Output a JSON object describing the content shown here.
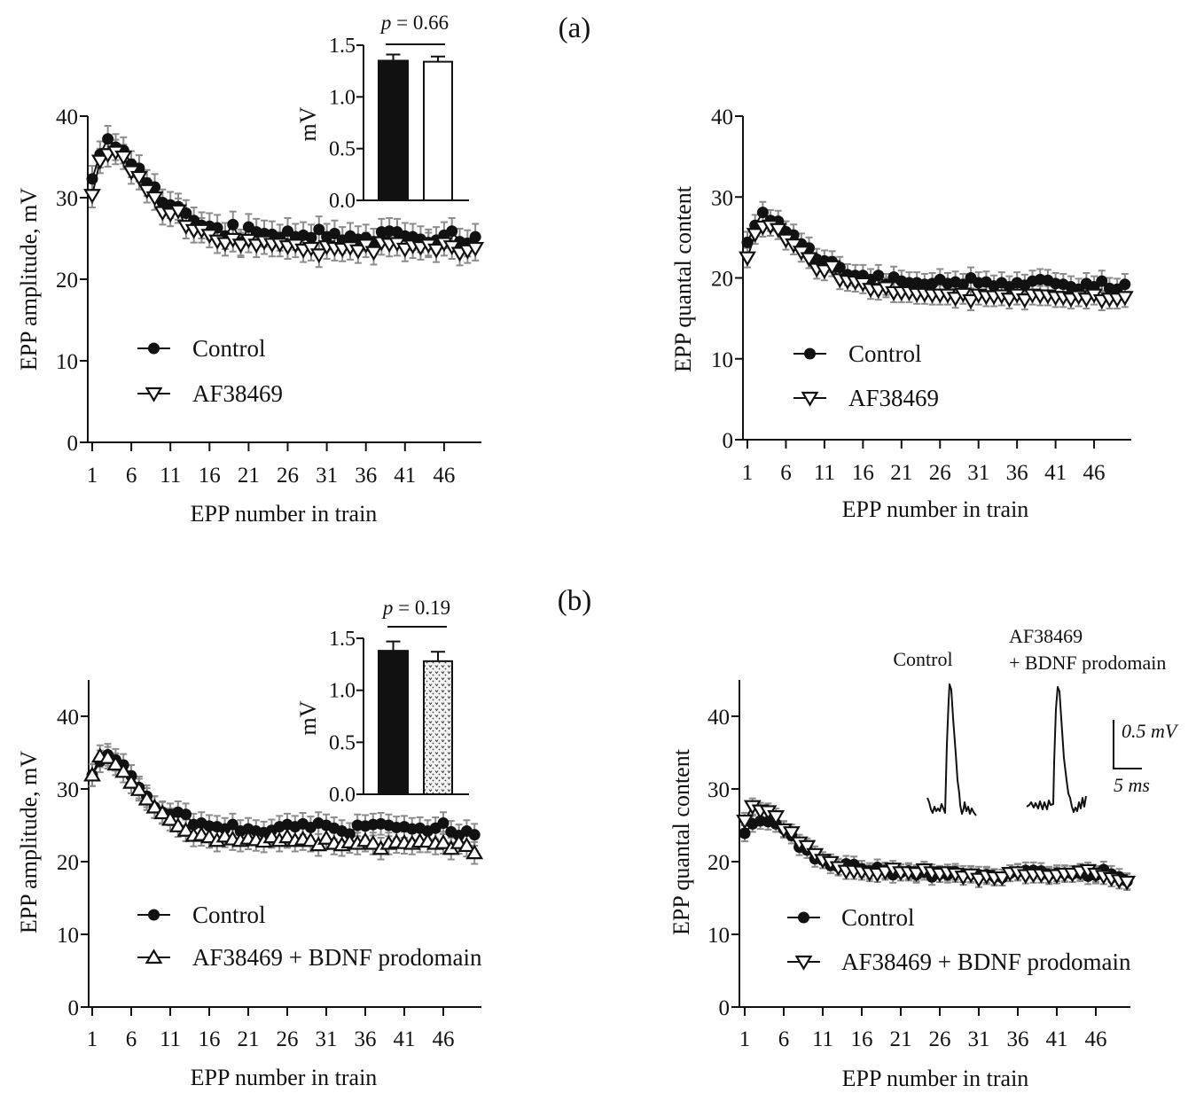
{
  "figure": {
    "panel_labels": {
      "a": "(a)",
      "b": "(b)"
    },
    "error_color": "#8c8c8c",
    "marker_color": "#111111"
  },
  "chart_data": [
    {
      "id": "a-amplitude",
      "panel": "(a)",
      "type": "line",
      "title": "",
      "xlabel": "EPP number in train",
      "ylabel": "EPP amplitude, mV",
      "xlim": [
        1,
        50
      ],
      "ylim": [
        0,
        40
      ],
      "xticks": [
        1,
        6,
        11,
        16,
        21,
        26,
        31,
        36,
        41,
        46
      ],
      "xtick_labels": [
        "1",
        "6",
        "11",
        "16",
        "21",
        "26",
        "31",
        "36",
        "41",
        "46"
      ],
      "yticks": [
        0,
        10,
        20,
        30,
        40
      ],
      "ytick_labels": [
        "0",
        "10",
        "20",
        "30",
        "40"
      ],
      "grid": false,
      "legend_position": "lower-left",
      "x": [
        1,
        2,
        3,
        4,
        5,
        6,
        7,
        8,
        9,
        10,
        11,
        12,
        13,
        14,
        15,
        16,
        17,
        18,
        19,
        20,
        21,
        22,
        23,
        24,
        25,
        26,
        27,
        28,
        29,
        30,
        31,
        32,
        33,
        34,
        35,
        36,
        37,
        38,
        39,
        40,
        41,
        42,
        43,
        44,
        45,
        46,
        47,
        48,
        49,
        50
      ],
      "series": [
        {
          "name": "Control",
          "marker": "filled-circle",
          "sem": 1.6,
          "values": [
            32.3,
            35.3,
            37.2,
            36.2,
            35.8,
            34.1,
            33.6,
            31.8,
            31.3,
            29.4,
            29.1,
            28.9,
            28.1,
            27.2,
            26.6,
            26.5,
            26.3,
            25.3,
            26.7,
            24.5,
            26.4,
            25.8,
            25.6,
            25.5,
            25.1,
            25.9,
            25.2,
            25.4,
            25.1,
            26.1,
            25.2,
            25.6,
            24.8,
            25.3,
            24.9,
            25.1,
            24.6,
            25.8,
            25.9,
            25.8,
            25.3,
            25.2,
            24.9,
            24.5,
            24.8,
            25.4,
            25.9,
            24.6,
            24.4,
            25.2
          ]
        },
        {
          "name": "AF38469",
          "marker": "open-triangle-down",
          "sem": 1.5,
          "values": [
            30.3,
            34.5,
            35.3,
            35.6,
            35.0,
            33.2,
            32.5,
            30.9,
            30.0,
            28.2,
            28.0,
            28.4,
            26.5,
            26.0,
            26.0,
            25.4,
            24.7,
            24.4,
            24.9,
            24.2,
            24.8,
            24.2,
            24.6,
            24.3,
            24.3,
            24.0,
            24.2,
            23.6,
            23.8,
            23.0,
            24.0,
            23.8,
            23.7,
            23.9,
            23.5,
            24.2,
            23.3,
            24.5,
            24.3,
            24.4,
            23.7,
            24.1,
            23.9,
            24.2,
            23.6,
            24.4,
            24.0,
            23.2,
            23.5,
            23.8
          ]
        }
      ]
    },
    {
      "id": "a-amplitude-inset",
      "panel": "(a)",
      "type": "bar",
      "categories": [
        "Control",
        "AF38469"
      ],
      "values": [
        1.35,
        1.34
      ],
      "errors": [
        0.06,
        0.05
      ],
      "fills": [
        "solid-black",
        "white"
      ],
      "ylabel": "mV",
      "ylim": [
        0,
        1.5
      ],
      "yticks": [
        0,
        0.5,
        1.0,
        1.5
      ],
      "ytick_labels": [
        "0.0",
        "0.5",
        "1.0",
        "1.5"
      ],
      "annotation": {
        "symbol": "p",
        "text": " = 0.66"
      }
    },
    {
      "id": "a-quantal",
      "panel": "(a)",
      "type": "line",
      "title": "",
      "xlabel": "EPP number in train",
      "ylabel": "EPP quantal content",
      "xlim": [
        1,
        50
      ],
      "ylim": [
        0,
        40
      ],
      "xticks": [
        1,
        6,
        11,
        16,
        21,
        26,
        31,
        36,
        41,
        46
      ],
      "xtick_labels": [
        "1",
        "6",
        "11",
        "16",
        "21",
        "26",
        "31",
        "36",
        "41",
        "46"
      ],
      "yticks": [
        0,
        10,
        20,
        30,
        40
      ],
      "ytick_labels": [
        "0",
        "10",
        "20",
        "30",
        "40"
      ],
      "grid": false,
      "legend_position": "lower-left",
      "x": [
        1,
        2,
        3,
        4,
        5,
        6,
        7,
        8,
        9,
        10,
        11,
        12,
        13,
        14,
        15,
        16,
        17,
        18,
        19,
        20,
        21,
        22,
        23,
        24,
        25,
        26,
        27,
        28,
        29,
        30,
        31,
        32,
        33,
        34,
        35,
        36,
        37,
        38,
        39,
        40,
        41,
        42,
        43,
        44,
        45,
        46,
        47,
        48,
        49,
        50
      ],
      "series": [
        {
          "name": "Control",
          "marker": "filled-circle",
          "sem": 1.3,
          "values": [
            24.4,
            26.5,
            28.1,
            27.1,
            27.0,
            25.7,
            25.3,
            24.2,
            23.7,
            22.3,
            22.1,
            22.0,
            21.3,
            20.4,
            20.3,
            20.3,
            19.8,
            20.3,
            19.2,
            20.1,
            19.6,
            19.4,
            19.4,
            19.2,
            19.3,
            19.8,
            19.3,
            19.5,
            19.2,
            20.0,
            19.4,
            19.5,
            19.0,
            19.4,
            18.9,
            19.4,
            19.1,
            19.6,
            19.8,
            19.7,
            19.3,
            19.2,
            18.9,
            18.6,
            19.3,
            18.9,
            19.6,
            18.7,
            18.6,
            19.2
          ]
        },
        {
          "name": "AF38469",
          "marker": "open-triangle-down",
          "sem": 1.2,
          "values": [
            22.5,
            25.4,
            26.3,
            26.4,
            26.0,
            24.7,
            24.1,
            23.2,
            22.4,
            21.1,
            20.9,
            21.4,
            19.8,
            19.6,
            19.5,
            19.3,
            18.6,
            18.5,
            18.8,
            18.2,
            18.2,
            18.2,
            18.0,
            18.0,
            17.9,
            17.9,
            17.9,
            17.5,
            18.0,
            17.2,
            17.9,
            17.7,
            17.7,
            17.8,
            17.4,
            17.9,
            17.3,
            17.9,
            17.8,
            17.8,
            17.6,
            17.6,
            17.4,
            17.7,
            17.4,
            17.9,
            17.2,
            17.4,
            17.4,
            17.6
          ]
        }
      ]
    },
    {
      "id": "b-amplitude",
      "panel": "(b)",
      "type": "line",
      "title": "",
      "xlabel": "EPP number in train",
      "ylabel": "EPP amplitude, mV",
      "xlim": [
        1,
        50
      ],
      "ylim": [
        0,
        45
      ],
      "xticks": [
        1,
        6,
        11,
        16,
        21,
        26,
        31,
        36,
        41,
        46
      ],
      "xtick_labels": [
        "1",
        "6",
        "11",
        "16",
        "21",
        "26",
        "31",
        "36",
        "41",
        "46"
      ],
      "yticks": [
        0,
        10,
        20,
        30,
        40
      ],
      "ytick_labels": [
        "0",
        "10",
        "20",
        "30",
        "40"
      ],
      "grid": false,
      "legend_position": "lower-left",
      "x": [
        1,
        2,
        3,
        4,
        5,
        6,
        7,
        8,
        9,
        10,
        11,
        12,
        13,
        14,
        15,
        16,
        17,
        18,
        19,
        20,
        21,
        22,
        23,
        24,
        25,
        26,
        27,
        28,
        29,
        30,
        31,
        32,
        33,
        34,
        35,
        36,
        37,
        38,
        39,
        40,
        41,
        42,
        43,
        44,
        45,
        46,
        47,
        48,
        49,
        50
      ],
      "series": [
        {
          "name": "Control",
          "marker": "filled-circle",
          "sem": 1.5,
          "values": [
            31.9,
            33.8,
            34.7,
            34.0,
            33.3,
            31.8,
            30.2,
            29.0,
            27.5,
            26.8,
            26.5,
            26.8,
            26.5,
            25.1,
            25.3,
            24.9,
            24.8,
            24.5,
            25.1,
            24.2,
            24.5,
            24.2,
            24.0,
            24.3,
            24.8,
            25.1,
            24.8,
            25.2,
            24.7,
            25.3,
            25.0,
            24.6,
            24.2,
            23.8,
            25.0,
            24.9,
            25.1,
            25.2,
            25.0,
            24.7,
            24.8,
            24.5,
            24.6,
            24.2,
            24.6,
            25.3,
            24.1,
            23.6,
            24.2,
            23.7
          ]
        },
        {
          "name": "AF38469 + BDNF prodomain",
          "marker": "open-triangle-up",
          "sem": 1.5,
          "values": [
            31.9,
            34.5,
            34.3,
            33.4,
            32.4,
            30.9,
            29.9,
            28.6,
            27.5,
            26.7,
            25.8,
            24.9,
            24.3,
            23.6,
            23.7,
            23.4,
            22.9,
            23.5,
            23.1,
            22.9,
            23.2,
            23.0,
            22.8,
            23.4,
            22.9,
            23.4,
            22.9,
            23.1,
            22.9,
            22.3,
            23.2,
            22.5,
            22.3,
            22.7,
            22.5,
            22.9,
            22.5,
            21.8,
            22.5,
            22.7,
            22.6,
            22.5,
            22.8,
            22.8,
            22.5,
            22.6,
            21.8,
            22.6,
            22.2,
            21.2
          ]
        }
      ]
    },
    {
      "id": "b-amplitude-inset",
      "panel": "(b)",
      "type": "bar",
      "categories": [
        "Control",
        "AF38469 + BDNF prodomain"
      ],
      "values": [
        1.38,
        1.28
      ],
      "errors": [
        0.09,
        0.09
      ],
      "fills": [
        "solid-black",
        "dotted-pattern"
      ],
      "ylabel": "mV",
      "ylim": [
        0,
        1.5
      ],
      "yticks": [
        0,
        0.5,
        1.0,
        1.5
      ],
      "ytick_labels": [
        "0.0",
        "0.5",
        "1.0",
        "1.5"
      ],
      "annotation": {
        "symbol": "p",
        "text": " = 0.19"
      }
    },
    {
      "id": "b-quantal",
      "panel": "(b)",
      "type": "line",
      "title": "",
      "xlabel": "EPP number in train",
      "ylabel": "EPP quantal content",
      "xlim": [
        1,
        50
      ],
      "ylim": [
        0,
        45
      ],
      "xticks": [
        1,
        6,
        11,
        16,
        21,
        26,
        31,
        36,
        41,
        46
      ],
      "xtick_labels": [
        "1",
        "6",
        "11",
        "16",
        "21",
        "26",
        "31",
        "36",
        "41",
        "46"
      ],
      "yticks": [
        0,
        10,
        20,
        30,
        40
      ],
      "ytick_labels": [
        "0",
        "10",
        "20",
        "30",
        "40"
      ],
      "grid": false,
      "legend_position": "lower-left",
      "x": [
        1,
        2,
        3,
        4,
        5,
        6,
        7,
        8,
        9,
        10,
        11,
        12,
        13,
        14,
        15,
        16,
        17,
        18,
        19,
        20,
        21,
        22,
        23,
        24,
        25,
        26,
        27,
        28,
        29,
        30,
        31,
        32,
        33,
        34,
        35,
        36,
        37,
        38,
        39,
        40,
        41,
        42,
        43,
        44,
        45,
        46,
        47,
        48,
        49,
        50
      ],
      "series": [
        {
          "name": "Control",
          "marker": "filled-circle",
          "sem": 1.1,
          "values": [
            23.9,
            25.2,
            25.6,
            25.5,
            25.2,
            24.5,
            23.6,
            22.0,
            21.6,
            20.4,
            20.2,
            19.5,
            19.3,
            19.7,
            19.6,
            19.0,
            18.7,
            19.2,
            18.8,
            18.2,
            18.5,
            18.7,
            18.2,
            18.6,
            17.9,
            18.3,
            18.2,
            18.6,
            18.3,
            18.3,
            18.2,
            18.2,
            17.9,
            17.8,
            18.4,
            18.6,
            18.8,
            18.8,
            18.7,
            18.2,
            18.4,
            18.4,
            18.3,
            18.4,
            18.0,
            18.1,
            18.9,
            18.3,
            17.9,
            17.3
          ]
        },
        {
          "name": "AF38469 + BDNF prodomain",
          "marker": "open-triangle-down",
          "sem": 1.1,
          "values": [
            25.6,
            27.6,
            27.0,
            26.9,
            26.2,
            24.4,
            24.0,
            22.6,
            22.1,
            21.0,
            20.2,
            19.9,
            19.2,
            18.7,
            18.7,
            18.6,
            18.4,
            18.3,
            18.6,
            19.0,
            18.5,
            18.5,
            18.4,
            18.9,
            18.5,
            18.3,
            18.5,
            18.3,
            17.9,
            18.2,
            17.6,
            18.0,
            17.8,
            17.8,
            18.4,
            18.5,
            18.1,
            18.2,
            18.2,
            18.0,
            18.1,
            18.3,
            18.3,
            18.6,
            18.8,
            18.3,
            18.0,
            17.7,
            17.4,
            17.2
          ]
        }
      ]
    }
  ],
  "traces": {
    "control_label": "Control",
    "treated_label_line1": "AF38469",
    "treated_label_line2": "+ BDNF prodomain",
    "scale_amplitude": "0.5 mV",
    "scale_time": "5 ms"
  }
}
